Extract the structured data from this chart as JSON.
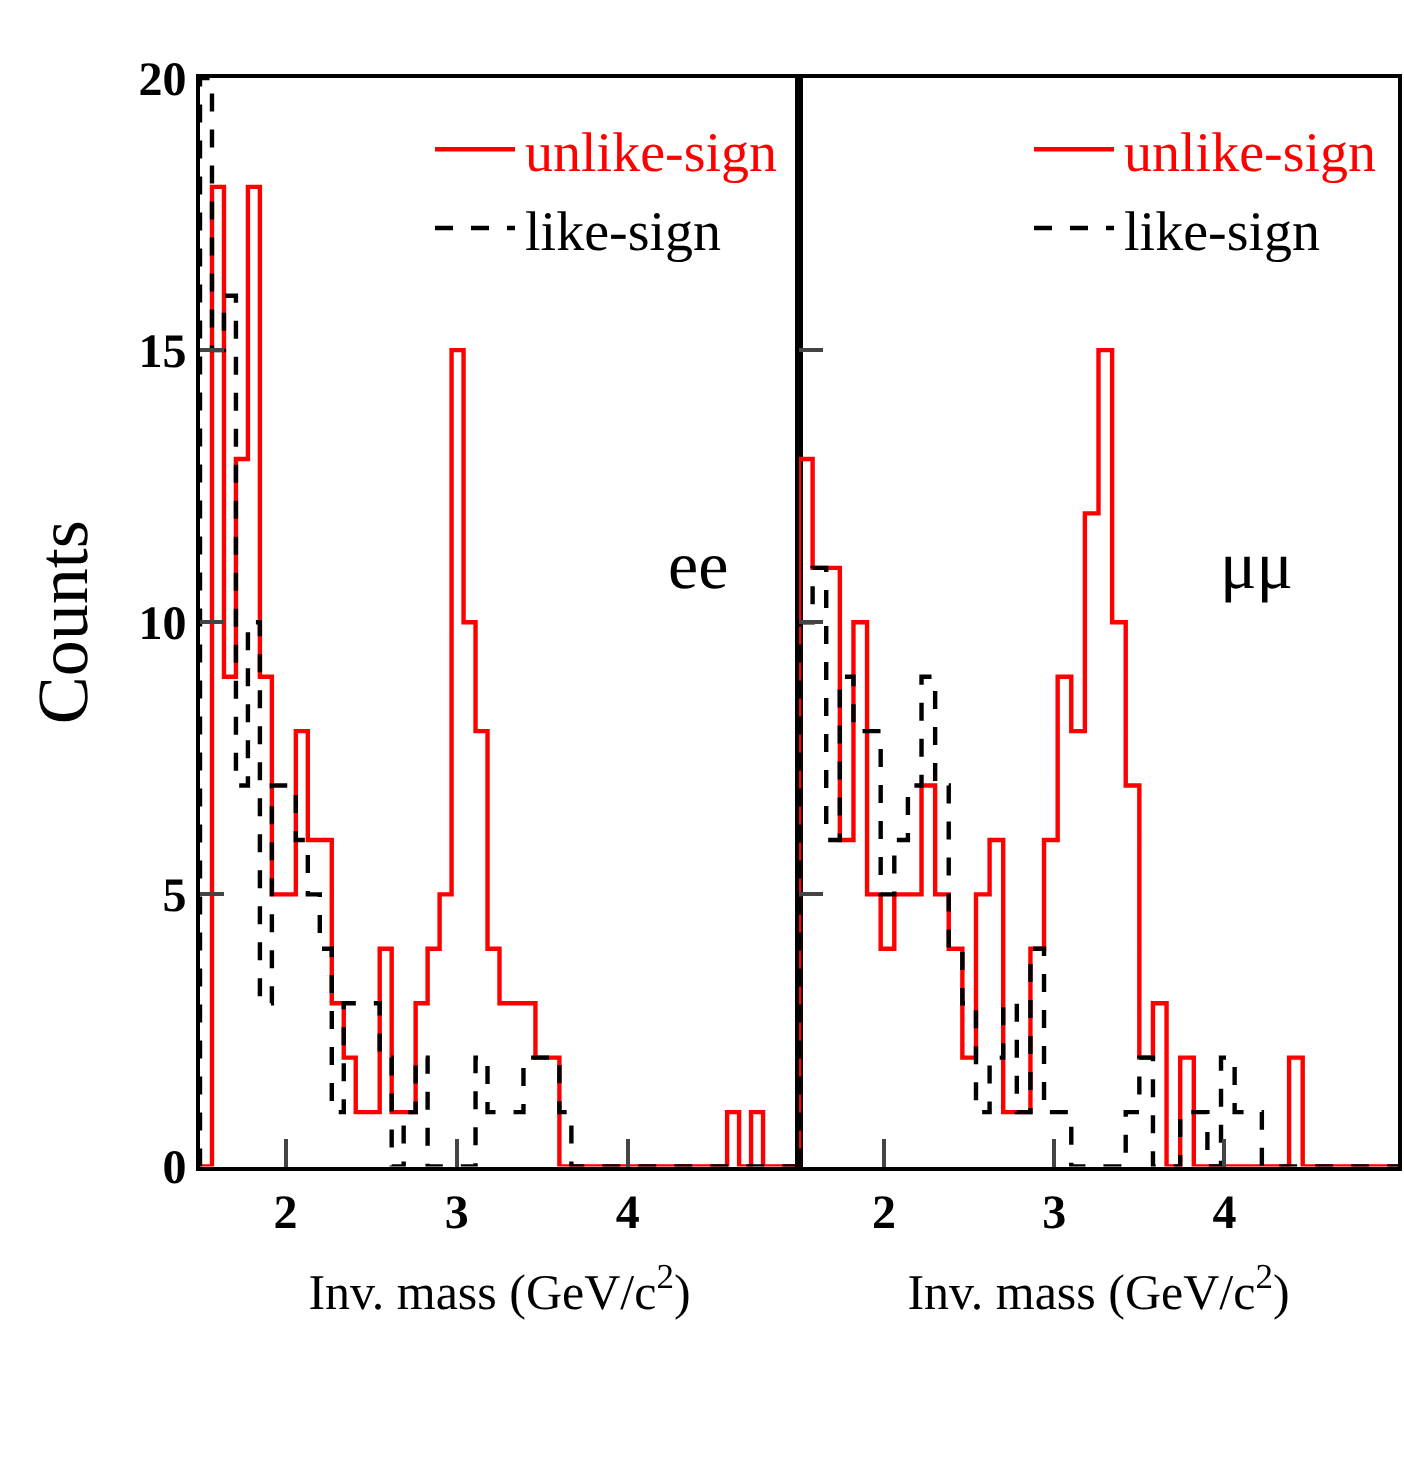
{
  "chart_data": [
    {
      "type": "histogram",
      "ylabel": "Counts",
      "xlabel": "Inv. mass (GeV/c$^{2}$)",
      "annotations": [
        "ee"
      ],
      "legend": "top right",
      "bins": [
        1.5,
        1.57,
        1.64,
        1.71,
        1.78,
        1.85,
        1.92,
        1.99,
        2.06,
        2.13,
        2.2,
        2.27,
        2.34,
        2.41,
        2.48,
        2.55,
        2.62,
        2.69,
        2.76,
        2.83,
        2.9,
        2.97,
        3.04,
        3.11,
        3.18,
        3.25,
        3.32,
        3.39,
        3.46,
        3.53,
        3.6,
        3.67,
        3.74,
        3.81,
        3.88,
        3.95,
        4.02,
        4.09,
        4.16,
        4.23,
        4.3,
        4.37,
        4.44,
        4.51,
        4.58,
        4.65,
        4.72,
        4.79,
        4.86,
        4.93,
        5.0
      ],
      "xlim": [
        1.5,
        5.0
      ],
      "xticks": [
        2,
        3,
        4
      ],
      "ylim": [
        0,
        20
      ],
      "yticks": [
        0,
        5,
        10,
        15,
        20
      ],
      "series": [
        {
          "name": "unlike-sign",
          "color": "#ff0000",
          "line_style": "solid",
          "values": [
            0,
            18,
            9,
            13,
            18,
            9,
            5,
            5,
            8,
            6,
            6,
            3,
            2,
            1,
            1,
            4,
            1,
            1,
            3,
            4,
            5,
            15,
            10,
            8,
            4,
            3,
            3,
            3,
            2,
            2,
            0,
            0,
            0,
            0,
            0,
            0,
            0,
            0,
            0,
            0,
            0,
            0,
            0,
            0,
            1,
            0,
            1,
            0,
            0,
            0
          ]
        },
        {
          "name": "like-sign",
          "color": "#000000",
          "line_style": "dashed",
          "values": [
            20,
            15,
            16,
            7,
            10,
            3,
            7,
            7,
            6,
            5,
            4,
            1,
            3,
            3,
            3,
            2,
            0,
            1,
            2,
            0,
            0,
            0,
            0,
            2,
            1,
            1,
            1,
            2,
            2,
            2,
            1,
            0,
            0,
            0,
            0,
            0,
            0,
            0,
            0,
            0,
            0,
            0,
            0,
            0,
            0,
            0,
            0,
            0,
            0,
            0
          ]
        }
      ]
    },
    {
      "type": "histogram",
      "xlabel": "Inv. mass (GeV/c$^{2}$)",
      "annotations": [
        "μμ"
      ],
      "legend": "top right",
      "tick_labels": "x",
      "bins": [
        1.5,
        1.58,
        1.66,
        1.74,
        1.82,
        1.9,
        1.98,
        2.06,
        2.14,
        2.22,
        2.3,
        2.38,
        2.46,
        2.54,
        2.62,
        2.7,
        2.78,
        2.86,
        2.94,
        3.02,
        3.1,
        3.18,
        3.26,
        3.34,
        3.42,
        3.5,
        3.58,
        3.66,
        3.74,
        3.82,
        3.9,
        3.98,
        4.06,
        4.14,
        4.22,
        4.3,
        4.38,
        4.46,
        4.54,
        4.62,
        4.7,
        4.78,
        4.86,
        4.94,
        5.02
      ],
      "xlim": [
        1.5,
        5.02
      ],
      "xticks": [
        2,
        3,
        4
      ],
      "ylim": [
        0,
        20
      ],
      "yticks": [
        0,
        5,
        10,
        15,
        20
      ],
      "series": [
        {
          "name": "unlike-sign",
          "color": "#ff0000",
          "line_style": "solid",
          "values": [
            13,
            11,
            11,
            6,
            10,
            5,
            4,
            5,
            5,
            7,
            5,
            4,
            2,
            5,
            6,
            1,
            1,
            4,
            6,
            9,
            8,
            12,
            15,
            10,
            7,
            2,
            3,
            0,
            2,
            0,
            0,
            0,
            0,
            0,
            0,
            0,
            2,
            0,
            0,
            0,
            0,
            0,
            0,
            0
          ]
        },
        {
          "name": "like-sign",
          "color": "#000000",
          "line_style": "dashed",
          "values": [
            10,
            11,
            6,
            9,
            8,
            8,
            5,
            6,
            7,
            9,
            7,
            4,
            3,
            1,
            2,
            3,
            1,
            4,
            1,
            1,
            0,
            0,
            0,
            0,
            1,
            2,
            0,
            0,
            1,
            1,
            0,
            2,
            1,
            1,
            0,
            0,
            0,
            0,
            0,
            0,
            0,
            0,
            0,
            0
          ]
        }
      ]
    }
  ]
}
